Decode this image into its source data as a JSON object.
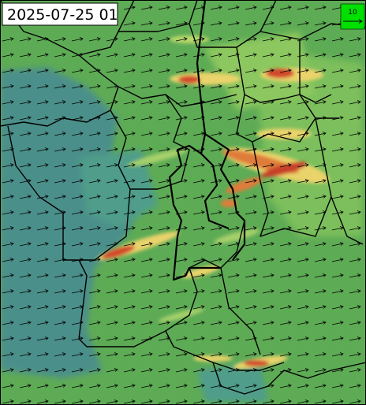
{
  "timestamp": "2025-07-25 01",
  "legend": {
    "label": "10"
  }
}
